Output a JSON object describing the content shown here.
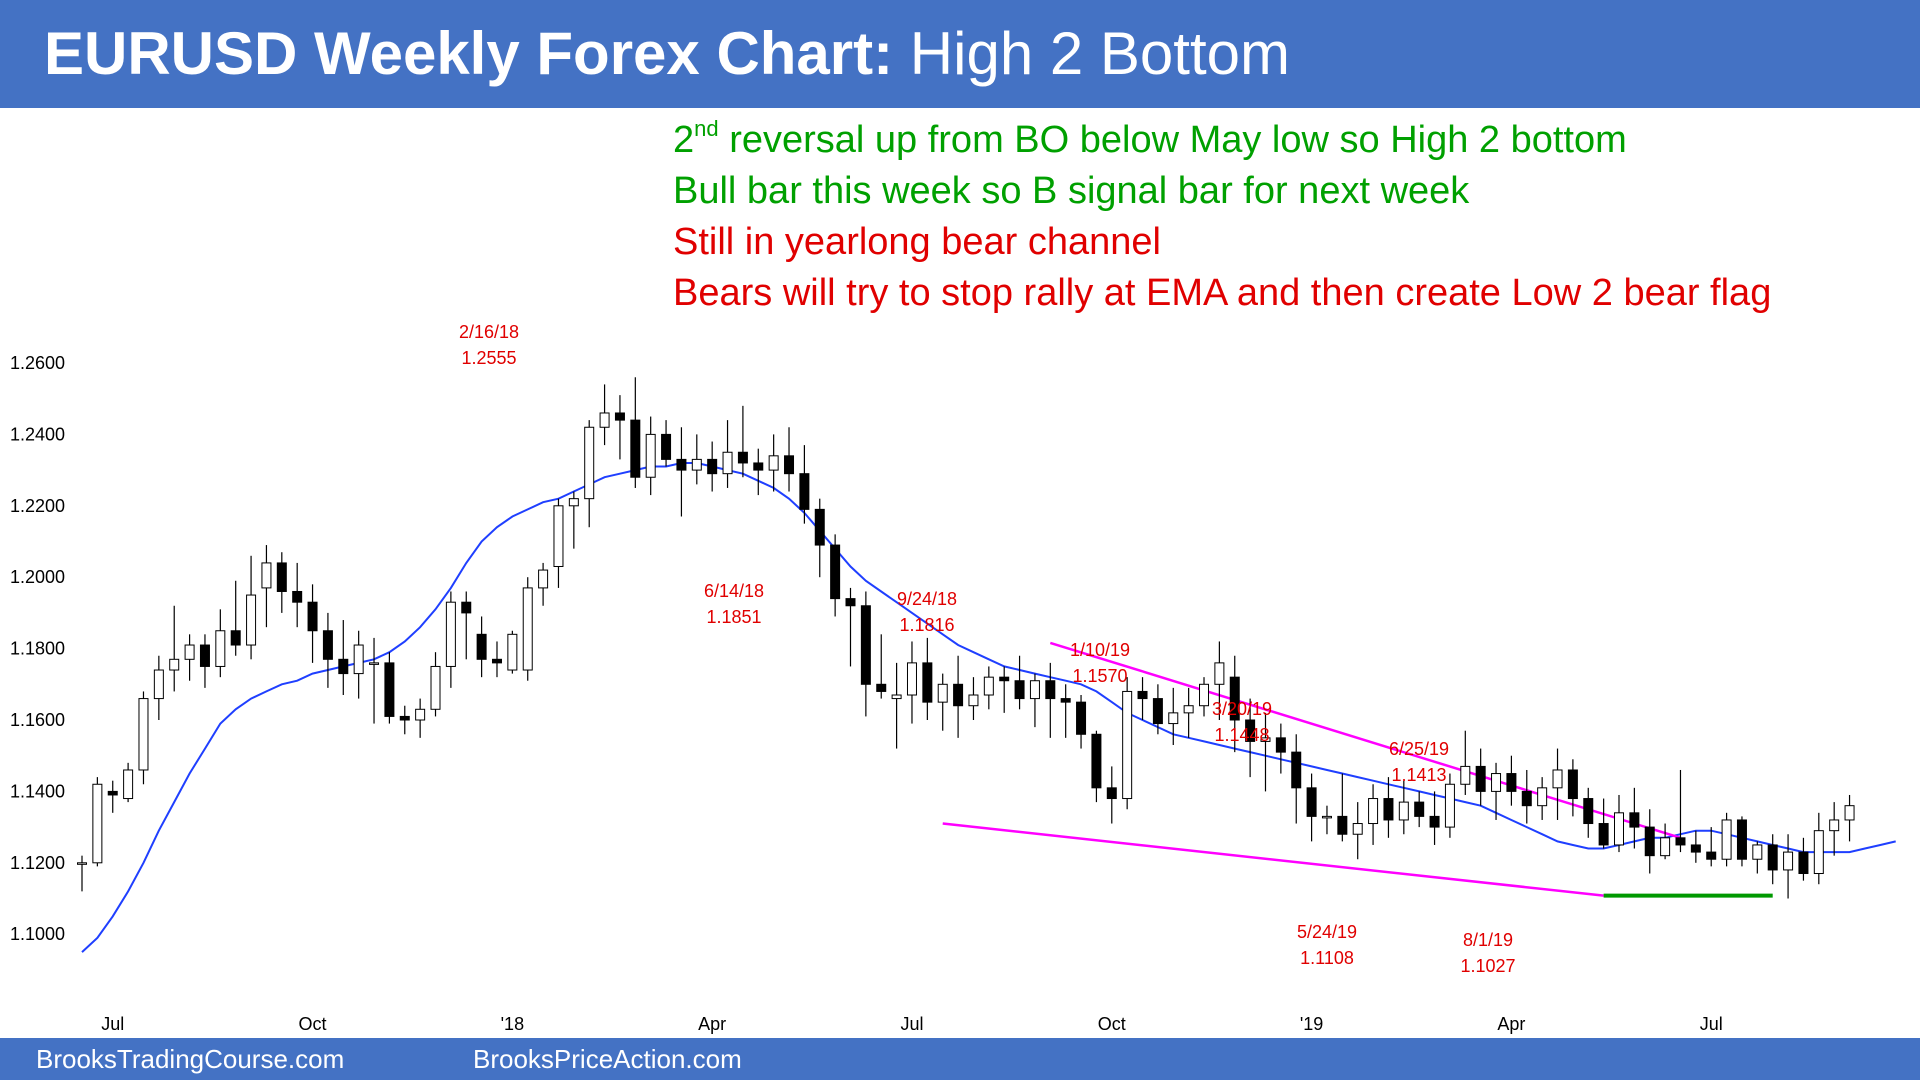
{
  "header": {
    "title_bold": "EURUSD Weekly Forex Chart:",
    "title_rest": " High 2 Bottom"
  },
  "notes": [
    {
      "text": "reversal up from BO below May low so High 2 bottom",
      "prefix": "2",
      "sup": "nd",
      "color": "#00A000"
    },
    {
      "text": "Bull bar this week so B signal bar for next week",
      "color": "#00A000"
    },
    {
      "text": "Still in yearlong bear channel",
      "color": "#E00000"
    },
    {
      "text": "Bears will try to stop rally at EMA and then create Low 2 bear flag",
      "color": "#E00000"
    }
  ],
  "footer": {
    "left_link": "BrooksTradingCourse.com",
    "right_link": "BrooksPriceAction.com"
  },
  "colors": {
    "brand_blue": "#4472C4",
    "ema": "#1F3FFF",
    "trendline": "#FF00FF",
    "support": "#009900",
    "annotation": "#E00000",
    "bull_candle": "#FFFFFF",
    "bear_candle": "#000000"
  },
  "chart_data": {
    "type": "candlestick",
    "title": "EURUSD Weekly Forex Chart",
    "xlabel": "",
    "ylabel": "",
    "ylim": [
      1.09,
      1.27
    ],
    "yticks": [
      1.26,
      1.24,
      1.22,
      1.2,
      1.18,
      1.16,
      1.14,
      1.12,
      1.1
    ],
    "ytick_labels": [
      "1.2600",
      "1.2400",
      "1.2200",
      "1.2000",
      "1.1800",
      "1.1600",
      "1.1400",
      "1.1200",
      "1.1000"
    ],
    "xticks": [
      {
        "index": 2,
        "label": "Jul"
      },
      {
        "index": 15,
        "label": "Oct"
      },
      {
        "index": 28,
        "label": "'18"
      },
      {
        "index": 41,
        "label": "Apr"
      },
      {
        "index": 54,
        "label": "Jul"
      },
      {
        "index": 67,
        "label": "Oct"
      },
      {
        "index": 80,
        "label": "'19"
      },
      {
        "index": 93,
        "label": "Apr"
      },
      {
        "index": 106,
        "label": "Jul"
      }
    ],
    "candles": [
      [
        1.12,
        1.122,
        1.112,
        1.12
      ],
      [
        1.12,
        1.144,
        1.119,
        1.142
      ],
      [
        1.14,
        1.143,
        1.134,
        1.139
      ],
      [
        1.138,
        1.148,
        1.137,
        1.146
      ],
      [
        1.146,
        1.168,
        1.142,
        1.166
      ],
      [
        1.166,
        1.178,
        1.16,
        1.174
      ],
      [
        1.174,
        1.192,
        1.168,
        1.177
      ],
      [
        1.177,
        1.184,
        1.171,
        1.181
      ],
      [
        1.181,
        1.184,
        1.169,
        1.175
      ],
      [
        1.175,
        1.191,
        1.172,
        1.185
      ],
      [
        1.185,
        1.199,
        1.178,
        1.181
      ],
      [
        1.181,
        1.206,
        1.177,
        1.195
      ],
      [
        1.197,
        1.209,
        1.186,
        1.204
      ],
      [
        1.204,
        1.207,
        1.19,
        1.196
      ],
      [
        1.196,
        1.204,
        1.186,
        1.193
      ],
      [
        1.193,
        1.198,
        1.176,
        1.185
      ],
      [
        1.185,
        1.19,
        1.169,
        1.177
      ],
      [
        1.177,
        1.188,
        1.167,
        1.173
      ],
      [
        1.173,
        1.185,
        1.166,
        1.181
      ],
      [
        1.176,
        1.183,
        1.159,
        1.176
      ],
      [
        1.176,
        1.179,
        1.159,
        1.161
      ],
      [
        1.161,
        1.164,
        1.156,
        1.16
      ],
      [
        1.16,
        1.166,
        1.155,
        1.163
      ],
      [
        1.163,
        1.179,
        1.161,
        1.175
      ],
      [
        1.175,
        1.196,
        1.169,
        1.193
      ],
      [
        1.193,
        1.196,
        1.177,
        1.19
      ],
      [
        1.184,
        1.189,
        1.172,
        1.177
      ],
      [
        1.177,
        1.182,
        1.172,
        1.176
      ],
      [
        1.174,
        1.185,
        1.173,
        1.184
      ],
      [
        1.174,
        1.2,
        1.171,
        1.197
      ],
      [
        1.197,
        1.204,
        1.192,
        1.202
      ],
      [
        1.203,
        1.222,
        1.197,
        1.22
      ],
      [
        1.22,
        1.224,
        1.208,
        1.222
      ],
      [
        1.222,
        1.244,
        1.214,
        1.242
      ],
      [
        1.242,
        1.254,
        1.237,
        1.246
      ],
      [
        1.246,
        1.251,
        1.233,
        1.244
      ],
      [
        1.244,
        1.256,
        1.225,
        1.228
      ],
      [
        1.228,
        1.245,
        1.223,
        1.24
      ],
      [
        1.24,
        1.244,
        1.231,
        1.233
      ],
      [
        1.233,
        1.242,
        1.217,
        1.23
      ],
      [
        1.23,
        1.24,
        1.226,
        1.233
      ],
      [
        1.233,
        1.238,
        1.224,
        1.229
      ],
      [
        1.229,
        1.244,
        1.225,
        1.235
      ],
      [
        1.235,
        1.248,
        1.228,
        1.232
      ],
      [
        1.232,
        1.236,
        1.223,
        1.23
      ],
      [
        1.23,
        1.24,
        1.224,
        1.234
      ],
      [
        1.234,
        1.242,
        1.224,
        1.229
      ],
      [
        1.229,
        1.237,
        1.215,
        1.219
      ],
      [
        1.219,
        1.222,
        1.2,
        1.209
      ],
      [
        1.209,
        1.212,
        1.189,
        1.194
      ],
      [
        1.194,
        1.197,
        1.175,
        1.192
      ],
      [
        1.192,
        1.196,
        1.161,
        1.17
      ],
      [
        1.17,
        1.184,
        1.166,
        1.168
      ],
      [
        1.166,
        1.176,
        1.152,
        1.167
      ],
      [
        1.167,
        1.182,
        1.159,
        1.176
      ],
      [
        1.176,
        1.183,
        1.16,
        1.165
      ],
      [
        1.165,
        1.173,
        1.157,
        1.17
      ],
      [
        1.17,
        1.178,
        1.155,
        1.164
      ],
      [
        1.164,
        1.172,
        1.16,
        1.167
      ],
      [
        1.167,
        1.175,
        1.163,
        1.172
      ],
      [
        1.172,
        1.175,
        1.162,
        1.171
      ],
      [
        1.171,
        1.178,
        1.163,
        1.166
      ],
      [
        1.166,
        1.173,
        1.158,
        1.171
      ],
      [
        1.171,
        1.176,
        1.155,
        1.166
      ],
      [
        1.166,
        1.17,
        1.155,
        1.165
      ],
      [
        1.165,
        1.167,
        1.152,
        1.156
      ],
      [
        1.156,
        1.157,
        1.137,
        1.141
      ],
      [
        1.141,
        1.147,
        1.131,
        1.138
      ],
      [
        1.138,
        1.172,
        1.135,
        1.168
      ],
      [
        1.168,
        1.172,
        1.16,
        1.166
      ],
      [
        1.166,
        1.17,
        1.156,
        1.159
      ],
      [
        1.159,
        1.169,
        1.153,
        1.162
      ],
      [
        1.162,
        1.169,
        1.155,
        1.164
      ],
      [
        1.164,
        1.172,
        1.161,
        1.17
      ],
      [
        1.17,
        1.182,
        1.16,
        1.176
      ],
      [
        1.172,
        1.178,
        1.151,
        1.16
      ],
      [
        1.16,
        1.166,
        1.144,
        1.154
      ],
      [
        1.154,
        1.162,
        1.14,
        1.155
      ],
      [
        1.155,
        1.159,
        1.145,
        1.151
      ],
      [
        1.151,
        1.156,
        1.131,
        1.141
      ],
      [
        1.141,
        1.145,
        1.126,
        1.133
      ],
      [
        1.133,
        1.136,
        1.128,
        1.133
      ],
      [
        1.133,
        1.145,
        1.126,
        1.128
      ],
      [
        1.128,
        1.137,
        1.121,
        1.131
      ],
      [
        1.131,
        1.142,
        1.125,
        1.138
      ],
      [
        1.138,
        1.144,
        1.127,
        1.132
      ],
      [
        1.132,
        1.143,
        1.128,
        1.137
      ],
      [
        1.137,
        1.14,
        1.13,
        1.133
      ],
      [
        1.133,
        1.14,
        1.125,
        1.13
      ],
      [
        1.13,
        1.145,
        1.127,
        1.142
      ],
      [
        1.142,
        1.157,
        1.139,
        1.147
      ],
      [
        1.147,
        1.152,
        1.136,
        1.14
      ],
      [
        1.14,
        1.148,
        1.132,
        1.145
      ],
      [
        1.145,
        1.15,
        1.136,
        1.14
      ],
      [
        1.14,
        1.146,
        1.131,
        1.136
      ],
      [
        1.136,
        1.144,
        1.132,
        1.141
      ],
      [
        1.141,
        1.152,
        1.132,
        1.146
      ],
      [
        1.146,
        1.149,
        1.133,
        1.138
      ],
      [
        1.138,
        1.141,
        1.127,
        1.131
      ],
      [
        1.131,
        1.138,
        1.124,
        1.125
      ],
      [
        1.125,
        1.139,
        1.123,
        1.134
      ],
      [
        1.134,
        1.141,
        1.124,
        1.13
      ],
      [
        1.13,
        1.135,
        1.117,
        1.122
      ],
      [
        1.122,
        1.131,
        1.121,
        1.127
      ],
      [
        1.127,
        1.146,
        1.123,
        1.125
      ],
      [
        1.125,
        1.129,
        1.12,
        1.123
      ],
      [
        1.123,
        1.13,
        1.119,
        1.121
      ],
      [
        1.121,
        1.134,
        1.119,
        1.132
      ],
      [
        1.132,
        1.133,
        1.119,
        1.121
      ],
      [
        1.121,
        1.126,
        1.117,
        1.125
      ],
      [
        1.125,
        1.128,
        1.114,
        1.118
      ],
      [
        1.118,
        1.128,
        1.11,
        1.123
      ],
      [
        1.123,
        1.127,
        1.115,
        1.117
      ],
      [
        1.117,
        1.134,
        1.114,
        1.129
      ],
      [
        1.129,
        1.137,
        1.122,
        1.132
      ],
      [
        1.132,
        1.139,
        1.126,
        1.136
      ]
    ],
    "ema": [
      1.095,
      1.099,
      1.105,
      1.112,
      1.12,
      1.129,
      1.137,
      1.145,
      1.152,
      1.159,
      1.163,
      1.166,
      1.168,
      1.17,
      1.171,
      1.173,
      1.174,
      1.175,
      1.176,
      1.177,
      1.179,
      1.182,
      1.186,
      1.191,
      1.197,
      1.204,
      1.21,
      1.214,
      1.217,
      1.219,
      1.221,
      1.222,
      1.224,
      1.226,
      1.228,
      1.229,
      1.23,
      1.231,
      1.231,
      1.232,
      1.232,
      1.231,
      1.23,
      1.229,
      1.227,
      1.225,
      1.222,
      1.218,
      1.213,
      1.208,
      1.203,
      1.199,
      1.196,
      1.193,
      1.19,
      1.187,
      1.184,
      1.181,
      1.179,
      1.177,
      1.175,
      1.174,
      1.173,
      1.172,
      1.171,
      1.17,
      1.168,
      1.165,
      1.162,
      1.16,
      1.158,
      1.156,
      1.155,
      1.154,
      1.153,
      1.152,
      1.151,
      1.15,
      1.149,
      1.148,
      1.147,
      1.146,
      1.145,
      1.144,
      1.143,
      1.142,
      1.141,
      1.14,
      1.139,
      1.138,
      1.137,
      1.136,
      1.134,
      1.132,
      1.13,
      1.128,
      1.126,
      1.125,
      1.124,
      1.124,
      1.125,
      1.126,
      1.127,
      1.127,
      1.128,
      1.129,
      1.129,
      1.128,
      1.127,
      1.126,
      1.125,
      1.124,
      1.123,
      1.123,
      1.123,
      1.123,
      1.124,
      1.125,
      1.126
    ],
    "annotations": [
      {
        "date": "2/16/18",
        "value": "1.2555"
      },
      {
        "date": "6/14/18",
        "value": "1.1851"
      },
      {
        "date": "9/24/18",
        "value": "1.1816"
      },
      {
        "date": "1/10/19",
        "value": "1.1570"
      },
      {
        "date": "3/20/19",
        "value": "1.1448"
      },
      {
        "date": "6/25/19",
        "value": "1.1413"
      },
      {
        "date": "5/24/19",
        "value": "1.1108"
      },
      {
        "date": "8/1/19",
        "value": "1.1027"
      }
    ],
    "lines": [
      {
        "name": "bear trendline",
        "from": {
          "index": 63,
          "price": 1.1816
        },
        "to": {
          "index": 104,
          "price": 1.127
        }
      },
      {
        "name": "channel bottom",
        "from": {
          "index": 56,
          "price": 1.131
        },
        "to": {
          "index": 99,
          "price": 1.1108
        }
      },
      {
        "name": "May low support",
        "from": {
          "index": 99,
          "price": 1.1108
        },
        "to": {
          "index": 110,
          "price": 1.1108
        }
      }
    ]
  }
}
